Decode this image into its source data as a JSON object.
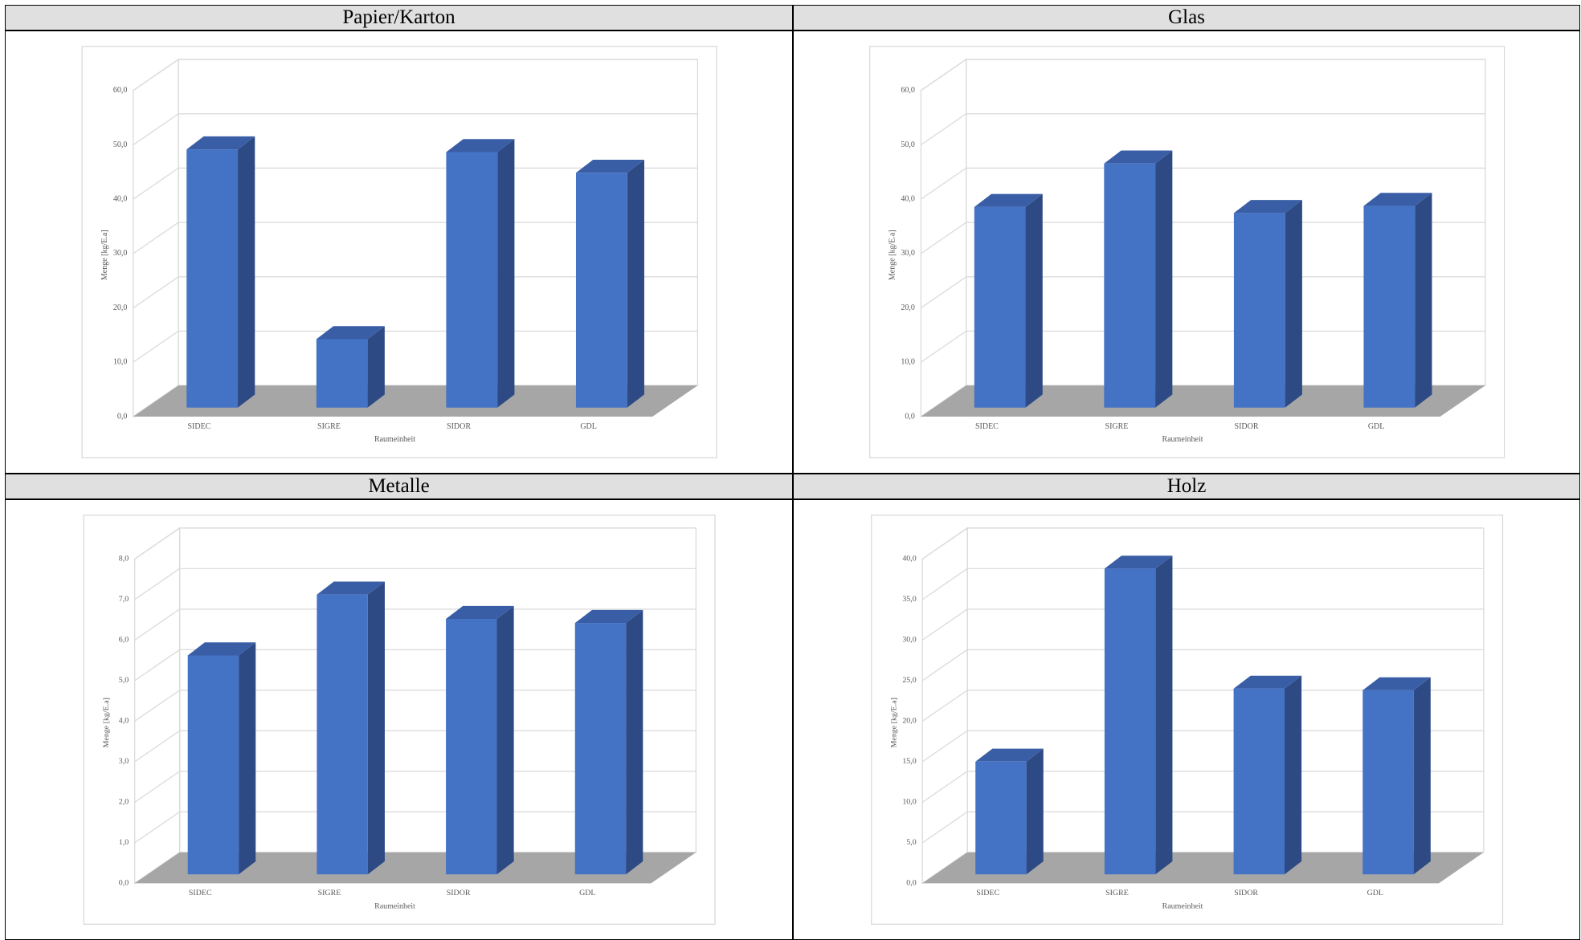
{
  "chart_data": [
    {
      "type": "bar3d",
      "title": "Papier/Karton",
      "y_label": "Menge [kg/E.a]",
      "x_label": "Raumeinheit",
      "categories": [
        "SIDEC",
        "SIGRE",
        "SIDOR",
        "GDL"
      ],
      "values": [
        47.5,
        12.6,
        47.0,
        43.2
      ],
      "color": "#4472c4",
      "ylim": [
        0,
        60
      ],
      "yticks": [
        {
          "value": 0,
          "label": "0,0"
        },
        {
          "value": 10,
          "label": "10,0"
        },
        {
          "value": 20,
          "label": "20,0"
        },
        {
          "value": 30,
          "label": "30,0"
        },
        {
          "value": 40,
          "label": "40,0"
        },
        {
          "value": 50,
          "label": "50,0"
        },
        {
          "value": 60,
          "label": "60,0"
        }
      ],
      "grid": true
    },
    {
      "type": "bar3d",
      "title": "Glas",
      "y_label": "Menge [kg/E.a]",
      "x_label": "Raumeinheit",
      "categories": [
        "SIDEC",
        "SIGRE",
        "SIDOR",
        "GDL"
      ],
      "values": [
        36.9,
        44.9,
        35.8,
        37.1
      ],
      "color": "#4472c4",
      "ylim": [
        0,
        60
      ],
      "yticks": [
        {
          "value": 0,
          "label": "0,0"
        },
        {
          "value": 10,
          "label": "10,0"
        },
        {
          "value": 20,
          "label": "20,0"
        },
        {
          "value": 30,
          "label": "30,0"
        },
        {
          "value": 40,
          "label": "40,0"
        },
        {
          "value": 50,
          "label": "50,0"
        },
        {
          "value": 60,
          "label": "60,0"
        }
      ],
      "grid": true
    },
    {
      "type": "bar3d",
      "title": "Metalle",
      "y_label": "Menge [kg/E.a]",
      "x_label": "Raumeinheit",
      "categories": [
        "SIDEC",
        "SIGRE",
        "SIDOR",
        "GDL"
      ],
      "values": [
        5.4,
        6.9,
        6.3,
        6.2
      ],
      "color": "#4472c4",
      "ylim": [
        0,
        8
      ],
      "yticks": [
        {
          "value": 0,
          "label": "0,0"
        },
        {
          "value": 1,
          "label": "1,0"
        },
        {
          "value": 2,
          "label": "2,0"
        },
        {
          "value": 3,
          "label": "3,0"
        },
        {
          "value": 4,
          "label": "4,0"
        },
        {
          "value": 5,
          "label": "5,0"
        },
        {
          "value": 6,
          "label": "6,0"
        },
        {
          "value": 7,
          "label": "7,0"
        },
        {
          "value": 8,
          "label": "8,0"
        }
      ],
      "grid": true
    },
    {
      "type": "bar3d",
      "title": "Holz",
      "y_label": "Menge [kg/E.a]",
      "x_label": "Raumeinheit",
      "categories": [
        "SIDEC",
        "SIGRE",
        "SIDOR",
        "GDL"
      ],
      "values": [
        13.9,
        37.7,
        22.9,
        22.7
      ],
      "color": "#4472c4",
      "ylim": [
        0,
        40
      ],
      "yticks": [
        {
          "value": 0,
          "label": "0,0"
        },
        {
          "value": 5,
          "label": "5,0"
        },
        {
          "value": 10,
          "label": "10,0"
        },
        {
          "value": 15,
          "label": "15,0"
        },
        {
          "value": 20,
          "label": "20,0"
        },
        {
          "value": 25,
          "label": "25,0"
        },
        {
          "value": 30,
          "label": "30,0"
        },
        {
          "value": 35,
          "label": "35,0"
        },
        {
          "value": 40,
          "label": "40,0"
        }
      ],
      "grid": true
    }
  ]
}
